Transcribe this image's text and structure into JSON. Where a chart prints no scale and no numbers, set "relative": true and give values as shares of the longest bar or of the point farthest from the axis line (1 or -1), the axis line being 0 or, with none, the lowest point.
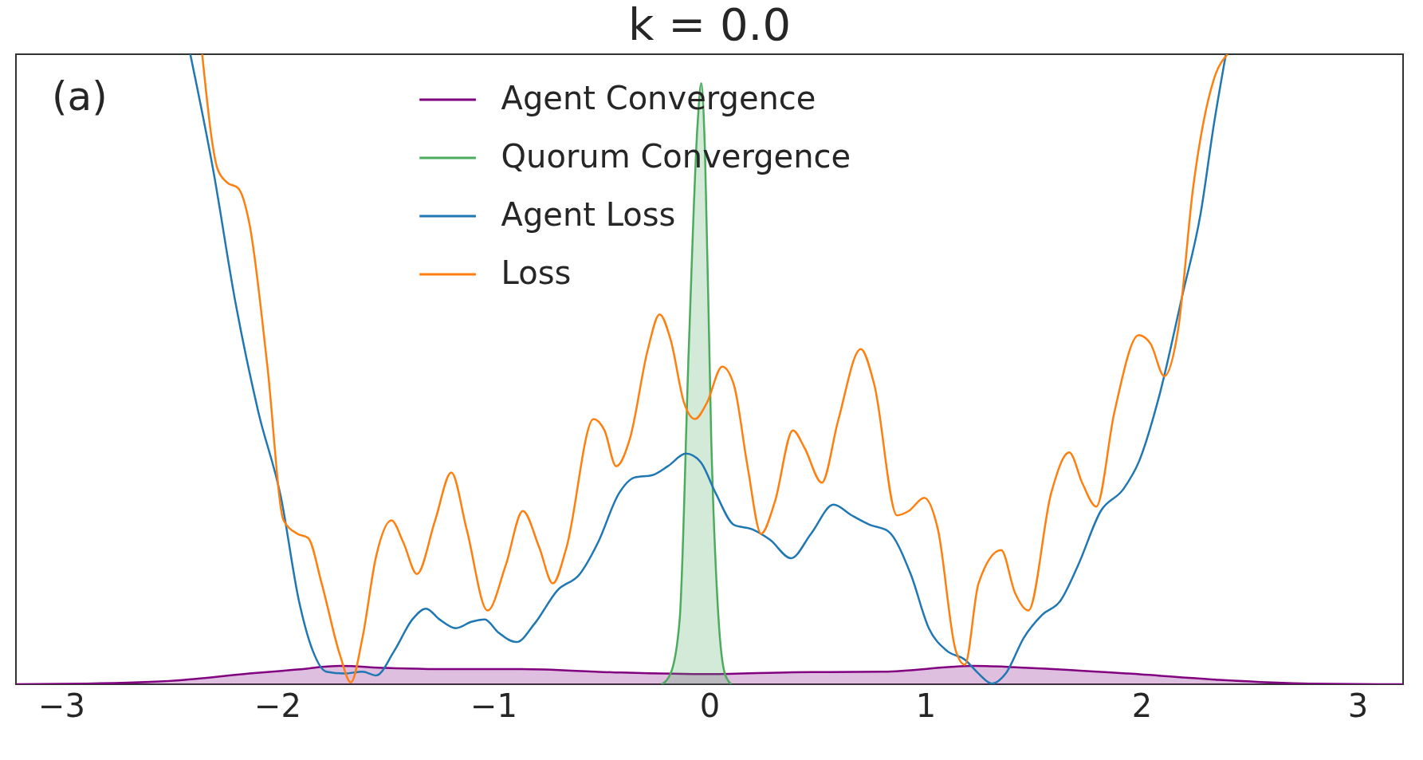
{
  "chart_data": {
    "type": "line",
    "title": "k = 0.0",
    "relative": true,
    "xlim": [
      -3.21,
      3.21
    ],
    "xticks": [
      -3,
      -2,
      -1,
      0,
      1,
      2,
      3
    ],
    "legend": "top",
    "grid": false,
    "marker": "none",
    "line_style": "solid",
    "annotations": [
      "(a)"
    ],
    "series": [
      {
        "name": "Agent Convergence",
        "type": "area",
        "color": "#800080",
        "x": [
          -3.21,
          -2.885,
          -2.465,
          -2.13,
          -1.92,
          -1.71,
          -1.5,
          -1.208,
          -0.872,
          -0.453,
          0,
          0.386,
          0.805,
          1.224,
          1.476,
          1.937,
          2.356,
          2.776,
          3.21
        ],
        "values": [
          0,
          0.001,
          0.006,
          0.017,
          0.023,
          0.029,
          0.026,
          0.024,
          0.024,
          0.019,
          0.016,
          0.019,
          0.02,
          0.029,
          0.026,
          0.017,
          0.007,
          0.001,
          0
        ]
      },
      {
        "name": "Quorum Convergence",
        "type": "area",
        "color": "#4dab5e",
        "x": [
          -0.222,
          -0.18,
          -0.138,
          -0.096,
          -0.055,
          -0.038,
          -0.021,
          0.008,
          0.042,
          0.071,
          0.101
        ],
        "values": [
          0,
          0.017,
          0.103,
          0.532,
          0.89,
          0.954,
          0.847,
          0.389,
          0.103,
          0.017,
          0
        ]
      },
      {
        "name": "Agent Loss",
        "color": "#1f77b4",
        "x": [
          -2.403,
          -2.298,
          -2.193,
          -2.088,
          -1.983,
          -1.9,
          -1.836,
          -1.774,
          -1.69,
          -1.606,
          -1.543,
          -1.459,
          -1.375,
          -1.312,
          -1.25,
          -1.174,
          -1.103,
          -1.04,
          -0.977,
          -0.893,
          -0.81,
          -0.704,
          -0.6,
          -0.516,
          -0.419,
          -0.348,
          -0.264,
          -0.193,
          -0.109,
          -0.042,
          0.029,
          0.113,
          0.197,
          0.281,
          0.377,
          0.47,
          0.574,
          0.658,
          0.742,
          0.826,
          0.931,
          1.015,
          1.099,
          1.182,
          1.245,
          1.308,
          1.371,
          1.455,
          1.539,
          1.623,
          1.706,
          1.811,
          1.916,
          1.987,
          2.084,
          2.189,
          2.273,
          2.335,
          2.39
        ],
        "values": [
          1,
          0.818,
          0.604,
          0.432,
          0.296,
          0.132,
          0.053,
          0.02,
          0.017,
          0.02,
          0.014,
          0.053,
          0.103,
          0.12,
          0.103,
          0.089,
          0.099,
          0.103,
          0.082,
          0.067,
          0.096,
          0.149,
          0.175,
          0.225,
          0.303,
          0.328,
          0.332,
          0.346,
          0.366,
          0.353,
          0.303,
          0.253,
          0.246,
          0.229,
          0.2,
          0.239,
          0.285,
          0.268,
          0.253,
          0.243,
          0.175,
          0.089,
          0.053,
          0.039,
          0.017,
          0.001,
          0.017,
          0.074,
          0.11,
          0.132,
          0.189,
          0.275,
          0.31,
          0.353,
          0.461,
          0.618,
          0.747,
          0.89,
          1
        ]
      },
      {
        "name": "Loss",
        "color": "#ff7f0e",
        "x": [
          -2.348,
          -2.277,
          -2.235,
          -2.18,
          -2.13,
          -2.046,
          -1.971,
          -1.908,
          -1.857,
          -1.795,
          -1.71,
          -1.66,
          -1.606,
          -1.543,
          -1.472,
          -1.417,
          -1.354,
          -1.27,
          -1.195,
          -1.124,
          -1.027,
          -0.943,
          -0.864,
          -0.788,
          -0.725,
          -0.662,
          -0.537,
          -0.486,
          -0.432,
          -0.369,
          -0.285,
          -0.231,
          -0.18,
          -0.117,
          -0.067,
          -0.013,
          0.059,
          0.113,
          0.176,
          0.239,
          0.302,
          0.386,
          0.44,
          0.52,
          0.595,
          0.7,
          0.763,
          0.868,
          0.922,
          0.994,
          1.057,
          1.14,
          1.182,
          1.245,
          1.35,
          1.413,
          1.476,
          1.581,
          1.665,
          1.727,
          1.79,
          1.874,
          1.987,
          2.042,
          2.105,
          2.168,
          2.239,
          2.335,
          2.398
        ],
        "values": [
          1,
          0.818,
          0.797,
          0.787,
          0.732,
          0.504,
          0.26,
          0.239,
          0.232,
          0.16,
          0.046,
          0.003,
          0.074,
          0.203,
          0.26,
          0.225,
          0.175,
          0.26,
          0.336,
          0.246,
          0.117,
          0.189,
          0.275,
          0.217,
          0.16,
          0.217,
          0.421,
          0.403,
          0.346,
          0.389,
          0.532,
          0.587,
          0.547,
          0.446,
          0.421,
          0.446,
          0.504,
          0.475,
          0.346,
          0.239,
          0.289,
          0.403,
          0.375,
          0.32,
          0.418,
          0.532,
          0.475,
          0.268,
          0.275,
          0.296,
          0.246,
          0.053,
          0.031,
          0.16,
          0.213,
          0.146,
          0.117,
          0.303,
          0.368,
          0.318,
          0.282,
          0.432,
          0.554,
          0.54,
          0.489,
          0.561,
          0.79,
          0.961,
          1
        ]
      }
    ]
  }
}
